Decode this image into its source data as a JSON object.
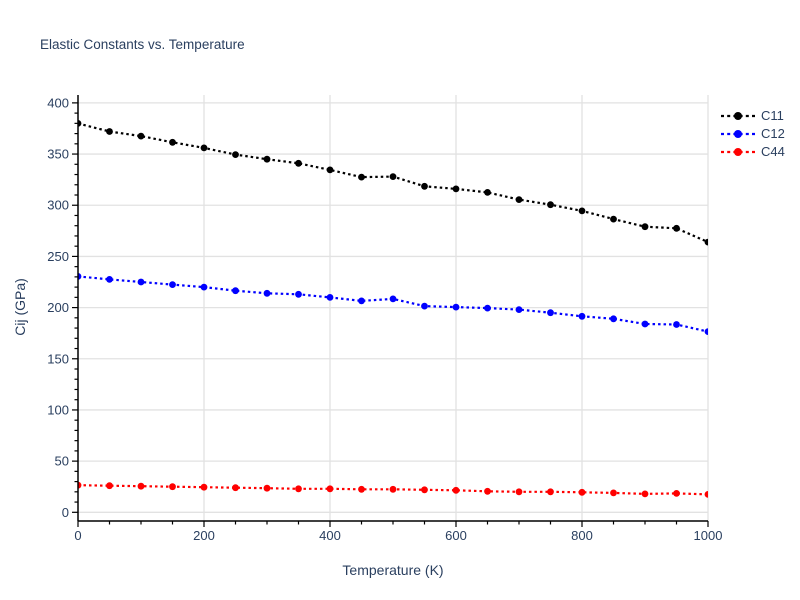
{
  "title": {
    "text": "Elastic Constants vs. Temperature",
    "color": "#2a3f5f"
  },
  "chart_data": {
    "type": "line",
    "title": "Elastic Constants vs. Temperature",
    "xlabel": "Temperature (K)",
    "ylabel": "Cij (GPa)",
    "x": [
      0,
      50,
      100,
      150,
      200,
      250,
      300,
      350,
      400,
      450,
      500,
      550,
      600,
      650,
      700,
      750,
      800,
      850,
      900,
      950,
      1000
    ],
    "series": [
      {
        "name": "C11",
        "color": "#000000",
        "values": [
          380,
          372,
          367.5,
          361.5,
          356,
          349.5,
          345,
          341,
          334.5,
          327.5,
          328,
          318.5,
          316,
          312.5,
          305.5,
          300.5,
          294.5,
          286.5,
          279,
          277.5,
          264
        ]
      },
      {
        "name": "C12",
        "color": "#0000ff",
        "values": [
          230.5,
          227.5,
          225,
          222.5,
          220,
          216.5,
          214,
          213,
          210,
          206.5,
          208.5,
          201.5,
          200.5,
          199.5,
          198,
          195,
          191.5,
          189,
          184,
          183.5,
          176.5
        ]
      },
      {
        "name": "C44",
        "color": "#ff0000",
        "values": [
          26.5,
          26,
          25.5,
          25,
          24.5,
          24,
          23.5,
          23,
          23,
          22.5,
          22.5,
          22,
          21.5,
          20.5,
          20,
          20,
          19.5,
          19,
          18,
          18.5,
          17.5
        ]
      }
    ],
    "xlim": [
      0,
      1000
    ],
    "ylim": [
      -8.5,
      407.7
    ],
    "x_ticks": [
      0,
      200,
      400,
      600,
      800,
      1000
    ],
    "y_ticks": [
      0,
      50,
      100,
      150,
      200,
      250,
      300,
      350,
      400
    ],
    "x_minor_step": 50,
    "y_minor_step": 10,
    "grid": true,
    "line_style": "dotted",
    "marker": "circle",
    "legend_position": "top-right-outside"
  },
  "colors": {
    "background": "#ffffff",
    "grid": "#e2e2e2",
    "axis": "#000000",
    "tick_label": "#2a3f5f"
  }
}
